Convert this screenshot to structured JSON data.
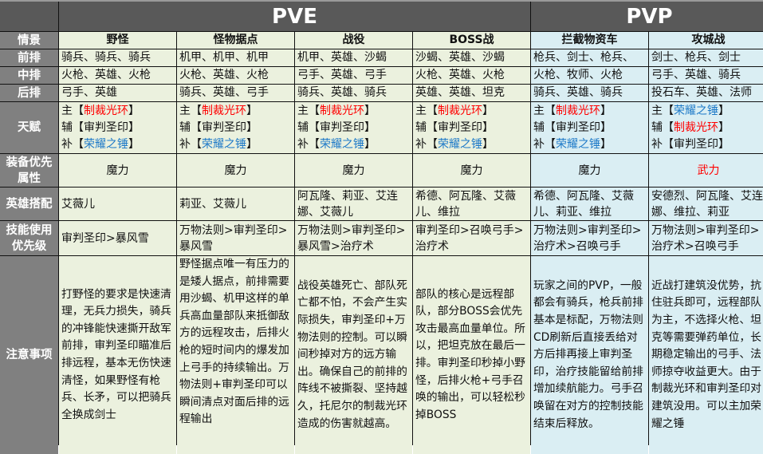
{
  "groups": {
    "pve": "PVE",
    "pvp": "PVP"
  },
  "row_labels": {
    "scene": "情景",
    "front": "前排",
    "middle": "中排",
    "back": "后排",
    "talent": "天赋",
    "equip": "装备优先属性",
    "heroes": "英雄搭配",
    "skills": "技能使用优先级",
    "notes": "注意事项"
  },
  "talent_colors": {
    "制裁光环": "#ff0000",
    "审判圣印": "#111111",
    "荣耀之锤": "#1f7ac8"
  },
  "columns": [
    {
      "scene": "野怪",
      "front": "骑兵、骑兵、骑兵",
      "middle": "火枪、英雄、火枪",
      "back": "弓手、英雄",
      "talents": [
        {
          "role": "主",
          "name": "制裁光环"
        },
        {
          "role": "辅",
          "name": "审判圣印"
        },
        {
          "role": "补",
          "name": "荣耀之锤"
        }
      ],
      "equip": "魔力",
      "equip_color": "#111111",
      "heroes": "艾薇儿",
      "skills": "审判圣印>暴风雪",
      "notes": "打野怪的要求是快速清理，无兵力损失，骑兵的冲锋能快速撕开敌军前排，审判圣印瞄准后排远程，基本无伤快速清怪，如果野怪有枪兵、长矛，可以把骑兵全换成剑士"
    },
    {
      "scene": "怪物据点",
      "front": "机甲、机甲、机甲",
      "middle": "火枪、英雄、火枪",
      "back": "骑兵、英雄、弓手",
      "talents": [
        {
          "role": "主",
          "name": "制裁光环"
        },
        {
          "role": "辅",
          "name": "审判圣印"
        },
        {
          "role": "补",
          "name": "荣耀之锤"
        }
      ],
      "equip": "魔力",
      "equip_color": "#111111",
      "heroes": "莉亚、艾薇儿",
      "skills": "万物法则>审判圣印>暴风雪",
      "notes": "野怪据点唯一有压力的是矮人据点，前排需要用沙蝎、机甲这样的单兵高血量部队来抵御敌方的远程攻击，后排火枪的短时间内的爆发加上弓手的持续输出。万物法则+审判圣印可以瞬间清点对面后排的远程输出"
    },
    {
      "scene": "战役",
      "front": "机甲、英雄、沙蝎",
      "middle": "弓手、英雄、弓手",
      "back": "骑兵、英雄、骑兵",
      "talents": [
        {
          "role": "主",
          "name": "制裁光环"
        },
        {
          "role": "辅",
          "name": "审判圣印"
        },
        {
          "role": "补",
          "name": "荣耀之锤"
        }
      ],
      "equip": "魔力",
      "equip_color": "#111111",
      "heroes": "阿瓦隆、莉亚、艾连娜、艾薇儿",
      "skills": "万物法则>审判圣印>暴风雪>治疗术",
      "notes": "战役英雄死亡、部队死亡都不怕，不会产生实际损失，审判圣印+万物法则的控制。可以瞬间秒掉对方的远方输出。确保自己的前排的阵线不被撕裂、坚持越久，托尼尔的制裁光环造成的伤害就越高。"
    },
    {
      "scene": "BOSS战",
      "front": "沙蝎、英雄、沙蝎",
      "middle": "火枪、英雄、火枪",
      "back": "英雄、英雄、坦克",
      "talents": [
        {
          "role": "主",
          "name": "制裁光环"
        },
        {
          "role": "辅",
          "name": "审判圣印"
        },
        {
          "role": "补",
          "name": "荣耀之锤"
        }
      ],
      "equip": "魔力",
      "equip_color": "#111111",
      "heroes": "希德、阿瓦隆、艾薇儿、维拉",
      "skills": "审判圣印>召唤弓手>治疗术",
      "notes": "部队的核心是远程部队，部分BOSS会优先攻击最高血量单位。所以，把坦克放在最后一排。审判圣印秒掉小野怪，后排火枪+弓手召唤的输出，可以轻松秒掉BOSS"
    },
    {
      "scene": "拦截物资车",
      "front": "枪兵、剑士、枪兵、",
      "middle": "火枪、牧师、火枪",
      "back": "骑兵、英雄、骑兵",
      "talents": [
        {
          "role": "主",
          "name": "制裁光环"
        },
        {
          "role": "辅",
          "name": "审判圣印"
        },
        {
          "role": "补",
          "name": "荣耀之锤"
        }
      ],
      "equip": "魔力",
      "equip_color": "#111111",
      "heroes": "希德、阿瓦隆、艾薇儿、莉亚、维拉",
      "skills": "万物法则>审判圣印>治疗术>召唤弓手",
      "notes": "玩家之间的PVP，一般都会有骑兵，枪兵前排基本是标配，万物法则CD刷新后直接丢给对方后排再接上审判圣印，治疗技能留给前排增加续航能力。弓手召唤留在对方的控制技能结束后释放。"
    },
    {
      "scene": "攻城战",
      "front": "剑士、枪兵、剑士",
      "middle": "弓手、英雄、骑兵",
      "back": "投石车、英雄、法师",
      "talents": [
        {
          "role": "主",
          "name": "荣耀之锤"
        },
        {
          "role": "辅",
          "name": "制裁光环"
        },
        {
          "role": "补",
          "name": "审判圣印"
        }
      ],
      "equip": "武力",
      "equip_color": "#ff0000",
      "heroes": "安德烈、阿瓦隆、艾连娜、维拉、莉亚",
      "skills": "万物法则>审判圣印>治疗术>召唤弓手",
      "notes": "近战打建筑没优势，抗住驻兵即可，远程部队为主，不选择火枪、坦克等需要弹药单位，长期稳定输出的弓手、法师掠夺收益更大。由于制裁光环和审判圣印对建筑没用。可以主加荣耀之锤"
    }
  ]
}
